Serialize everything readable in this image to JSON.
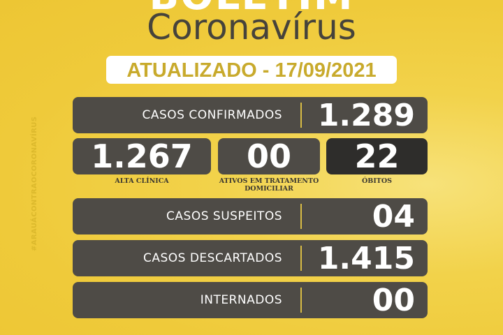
{
  "header": {
    "top_word": "BOLETIM",
    "title": "Coronavírus",
    "updated": "ATUALIZADO - 17/09/2021"
  },
  "hashtag": "#ARAUÁCONTRAOCORONAVÍRUS",
  "confirmed": {
    "label": "CASOS CONFIRMADOS",
    "value": "1.289"
  },
  "breakdown": [
    {
      "label": "ALTA CLÍNICA",
      "value": "1.267"
    },
    {
      "label": "ATIVOS EM TRATAMENTO DOMICILIAR",
      "value": "00"
    },
    {
      "label": "ÓBITOS",
      "value": "22"
    }
  ],
  "rows": [
    {
      "label": "CASOS SUSPEITOS",
      "value": "04"
    },
    {
      "label": "CASOS DESCARTADOS",
      "value": "1.415"
    },
    {
      "label": "INTERNADOS",
      "value": "00"
    }
  ],
  "colors": {
    "background": "#efca3a",
    "box": "#4e4b46",
    "deaths_box": "#2e2d2b",
    "date_text": "#c8aa2c",
    "title": "#46433b"
  }
}
